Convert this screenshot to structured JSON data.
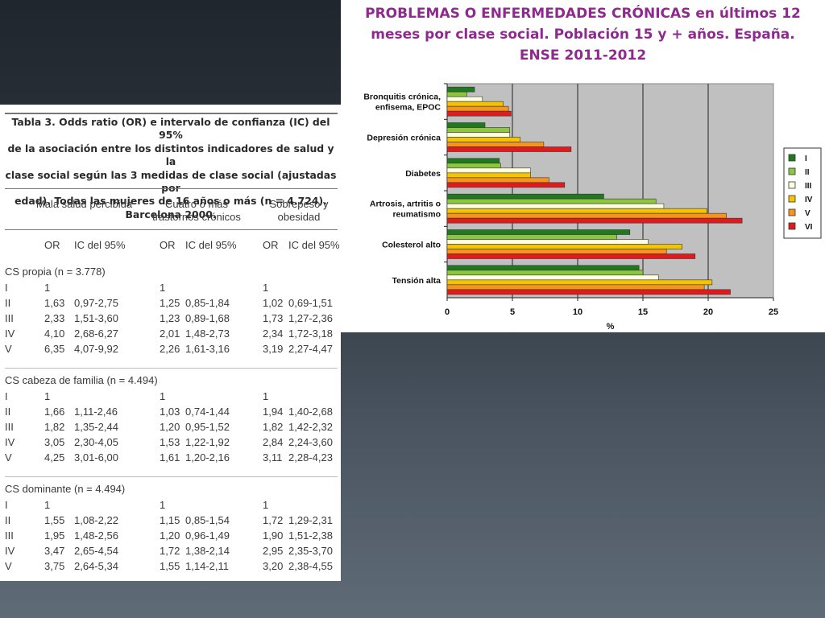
{
  "table": {
    "caption_lines": [
      "Tabla 3. Odds ratio (OR) e intervalo de confianza (IC) del 95%",
      "de la asociación entre los distintos indicadores de salud y la",
      "clase social según las 3 medidas de clase social (ajustadas por",
      "edad). Todas las mujeres de 16 años o más (n = 4.724).",
      "Barcelona 2000."
    ],
    "group_headers": [
      "Mala salud percibida",
      "Cuatro o más trastornos crónicos",
      "Sobrepeso y obesidad"
    ],
    "sub_headers": [
      "OR",
      "IC del 95%",
      "OR",
      "IC del 95%",
      "OR",
      "IC del 95%"
    ],
    "sections": [
      {
        "title": "CS propia (n = 3.778)",
        "rows": [
          [
            "I",
            "1",
            "",
            "1",
            "",
            "1",
            ""
          ],
          [
            "II",
            "1,63",
            "0,97-2,75",
            "1,25",
            "0,85-1,84",
            "1,02",
            "0,69-1,51"
          ],
          [
            "III",
            "2,33",
            "1,51-3,60",
            "1,23",
            "0,89-1,68",
            "1,73",
            "1,27-2,36"
          ],
          [
            "IV",
            "4,10",
            "2,68-6,27",
            "2,01",
            "1,48-2,73",
            "2,34",
            "1,72-3,18"
          ],
          [
            "V",
            "6,35",
            "4,07-9,92",
            "2,26",
            "1,61-3,16",
            "3,19",
            "2,27-4,47"
          ]
        ]
      },
      {
        "title": "CS cabeza de familia (n = 4.494)",
        "rows": [
          [
            "I",
            "1",
            "",
            "1",
            "",
            "1",
            ""
          ],
          [
            "II",
            "1,66",
            "1,11-2,46",
            "1,03",
            "0,74-1,44",
            "1,94",
            "1,40-2,68"
          ],
          [
            "III",
            "1,82",
            "1,35-2,44",
            "1,20",
            "0,95-1,52",
            "1,82",
            "1,42-2,32"
          ],
          [
            "IV",
            "3,05",
            "2,30-4,05",
            "1,53",
            "1,22-1,92",
            "2,84",
            "2,24-3,60"
          ],
          [
            "V",
            "4,25",
            "3,01-6,00",
            "1,61",
            "1,20-2,16",
            "3,11",
            "2,28-4,23"
          ]
        ]
      },
      {
        "title": "CS dominante (n = 4.494)",
        "rows": [
          [
            "I",
            "1",
            "",
            "1",
            "",
            "1",
            ""
          ],
          [
            "II",
            "1,55",
            "1,08-2,22",
            "1,15",
            "0,85-1,54",
            "1,72",
            "1,29-2,31"
          ],
          [
            "III",
            "1,95",
            "1,48-2,56",
            "1,20",
            "0,96-1,49",
            "1,90",
            "1,51-2,38"
          ],
          [
            "IV",
            "3,47",
            "2,65-4,54",
            "1,72",
            "1,38-2,14",
            "2,95",
            "2,35-3,70"
          ],
          [
            "V",
            "3,75",
            "2,64-5,34",
            "1,55",
            "1,14-2,11",
            "3,20",
            "2,38-4,55"
          ]
        ]
      }
    ]
  },
  "chart_data": {
    "type": "bar",
    "orientation": "horizontal",
    "title_lines": [
      "PROBLEMAS O ENFERMEDADES CRÓNICAS en últimos 12",
      "meses por clase social. Población 15 y + años. España.",
      "ENSE 2011-2012"
    ],
    "categories": [
      "Bronquitis crónica,|enfisema, EPOC",
      "Depresión crónica",
      "Diabetes",
      "Artrosis, artritis o|reumatismo",
      "Colesterol alto",
      "Tensión alta"
    ],
    "series": [
      {
        "name": "I",
        "color": "#1f7a1f",
        "values": [
          2.1,
          2.9,
          4.0,
          12.0,
          14.0,
          14.7
        ]
      },
      {
        "name": "II",
        "color": "#8cc63f",
        "values": [
          1.5,
          4.8,
          4.1,
          16.0,
          13.0,
          15.0
        ]
      },
      {
        "name": "III",
        "color": "#ffffe0",
        "values": [
          2.7,
          4.8,
          6.4,
          16.6,
          15.4,
          16.2
        ]
      },
      {
        "name": "IV",
        "color": "#f5c400",
        "values": [
          4.3,
          5.6,
          6.4,
          19.9,
          18.0,
          20.3
        ]
      },
      {
        "name": "V",
        "color": "#f7941d",
        "values": [
          4.7,
          7.4,
          7.8,
          21.4,
          16.8,
          19.7
        ]
      },
      {
        "name": "VI",
        "color": "#e31a1c",
        "values": [
          4.9,
          9.5,
          9.0,
          22.6,
          19.0,
          21.7
        ]
      }
    ],
    "xlim": [
      0,
      25
    ],
    "xticks": [
      "0",
      "5",
      "10",
      "15",
      "20",
      "25"
    ],
    "xlabel": "%",
    "grid": true,
    "plot_background": "#c0c0c0",
    "legend_position": "right"
  }
}
